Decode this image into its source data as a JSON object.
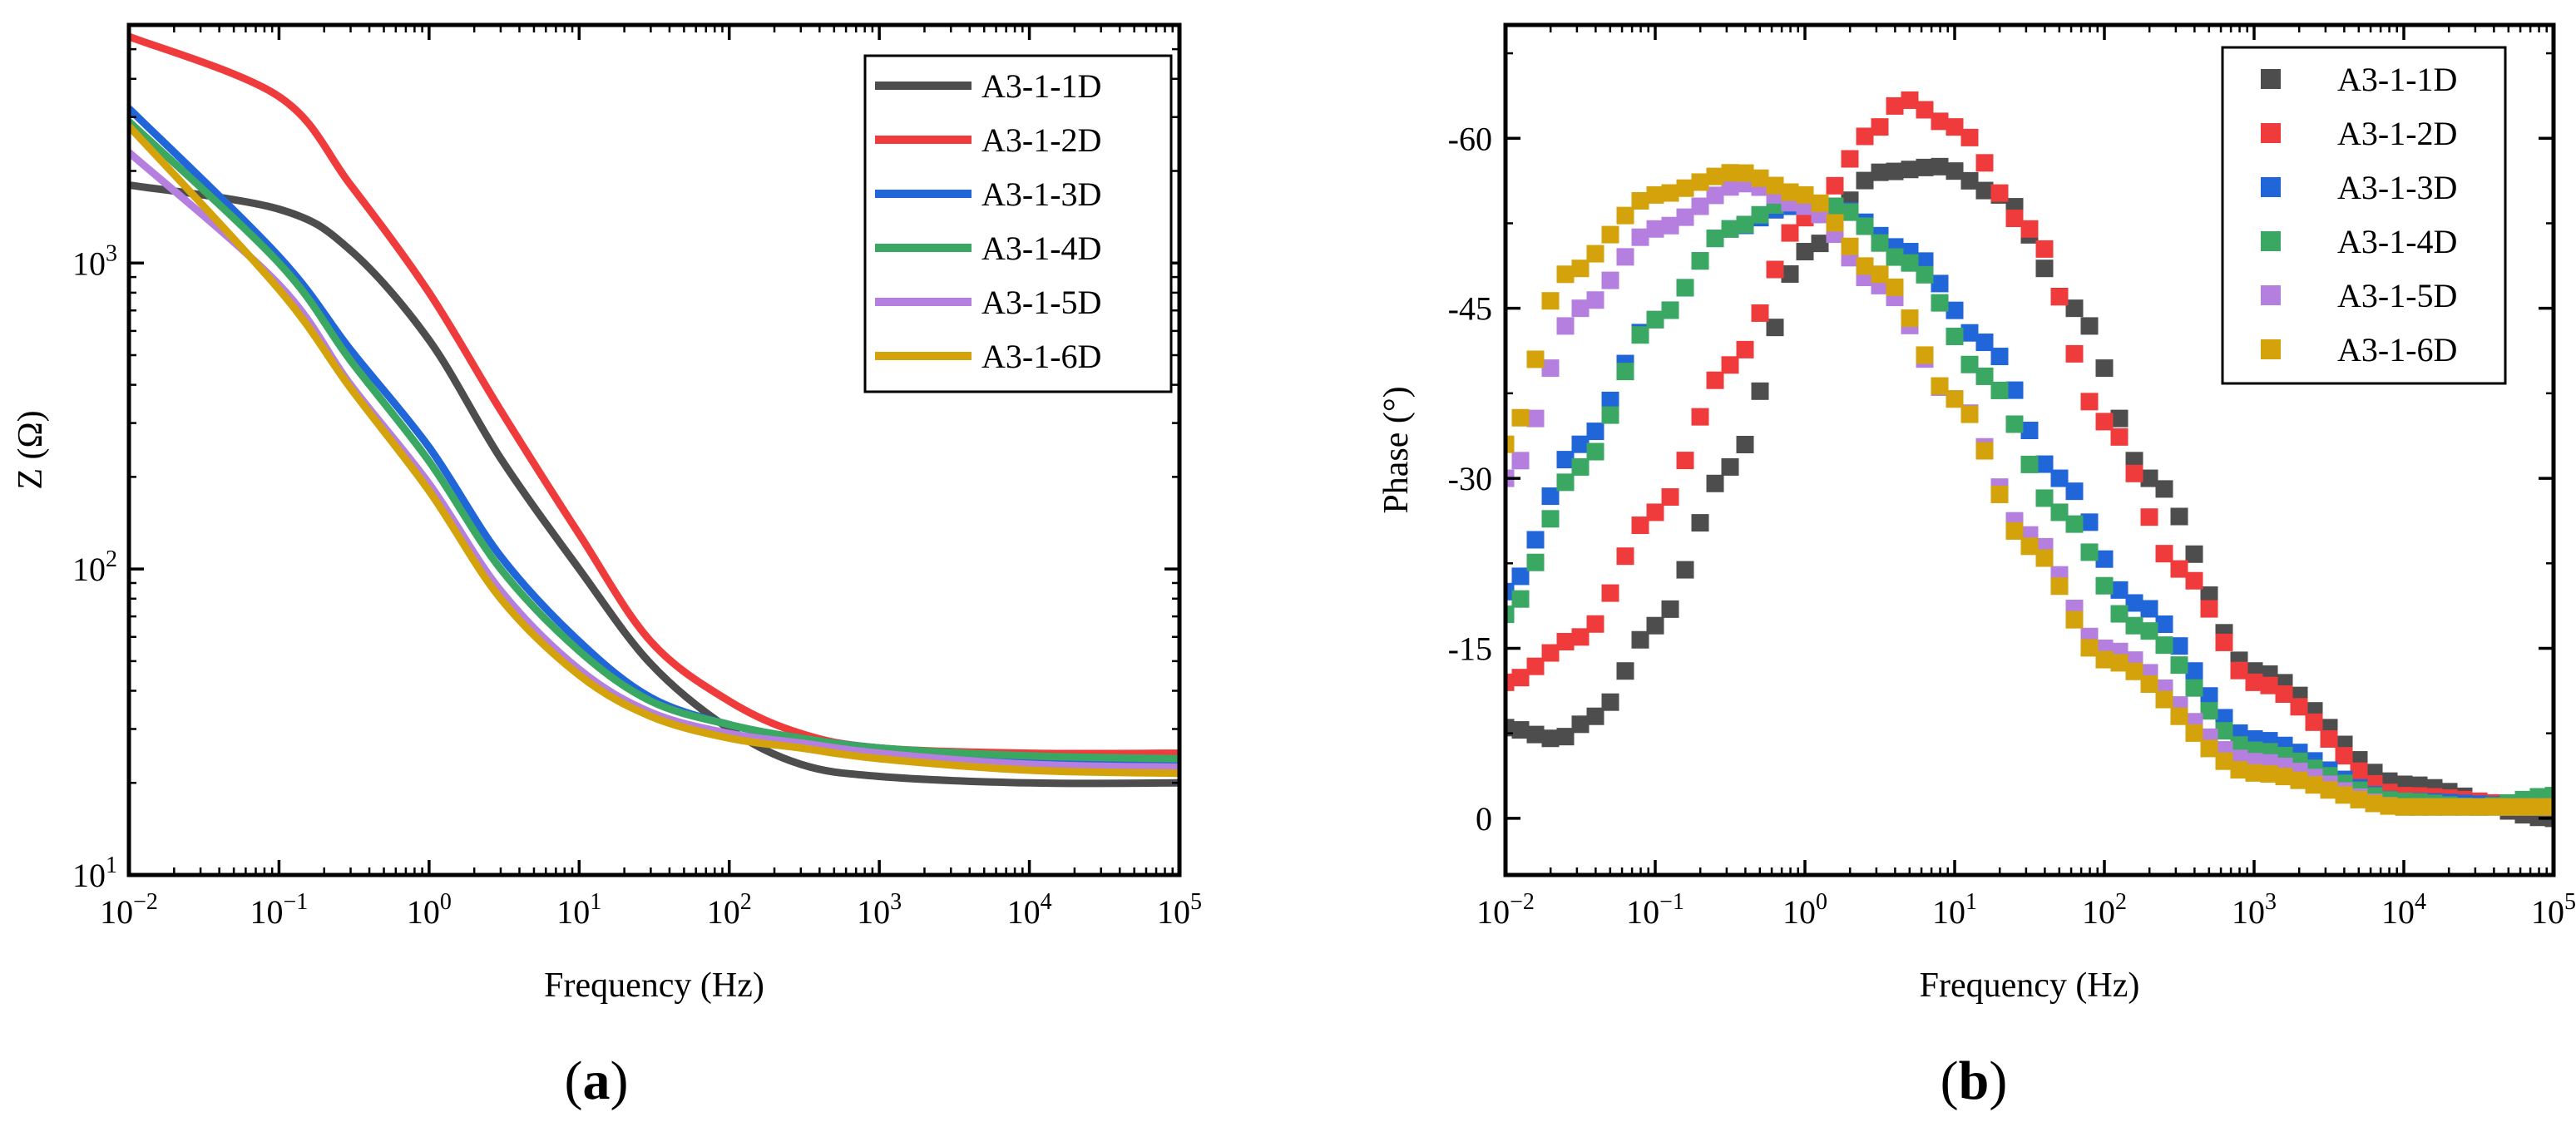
{
  "chart_data": [
    {
      "panel": "(a)",
      "panel_label": {
        "open": "(",
        "letter": "a",
        "close": ")"
      },
      "type": "line",
      "xscale": "log",
      "yscale": "log",
      "xlabel": "Frequency (Hz)",
      "ylabel": "Z (Ω)",
      "xlim": [
        0.01,
        100000
      ],
      "ylim": [
        10,
        6000
      ],
      "x_ticks": [
        {
          "mant": "10",
          "exp": "−2"
        },
        {
          "mant": "10",
          "exp": "−1"
        },
        {
          "mant": "10",
          "exp": "0"
        },
        {
          "mant": "10",
          "exp": "1"
        },
        {
          "mant": "10",
          "exp": "2"
        },
        {
          "mant": "10",
          "exp": "3"
        },
        {
          "mant": "10",
          "exp": "4"
        },
        {
          "mant": "10",
          "exp": "5"
        }
      ],
      "y_ticks": [
        {
          "mant": "10",
          "exp": "1"
        },
        {
          "mant": "10",
          "exp": "2"
        },
        {
          "mant": "10",
          "exp": "3"
        }
      ],
      "legend_position": "top-right",
      "x": [
        0.01,
        0.1,
        0.3,
        1,
        3,
        10,
        30,
        100,
        300,
        1000,
        10000,
        100000
      ],
      "series": [
        {
          "name": "A3-1-1D",
          "color": "#4d4d4d",
          "values": [
            1800,
            1500,
            1100,
            560,
            230,
            100,
            49,
            30,
            23,
            21,
            20,
            20
          ]
        },
        {
          "name": "A3-1-2D",
          "color": "#ef3b3b",
          "values": [
            5500,
            3500,
            1800,
            800,
            330,
            130,
            58,
            37,
            29,
            26,
            25,
            25
          ]
        },
        {
          "name": "A3-1-3D",
          "color": "#2166d9",
          "values": [
            3200,
            1050,
            520,
            250,
            110,
            58,
            38,
            31,
            28,
            26,
            24,
            23.5
          ]
        },
        {
          "name": "A3-1-4D",
          "color": "#3aa763",
          "values": [
            2900,
            1000,
            480,
            225,
            100,
            54,
            37,
            31,
            28,
            26,
            24.5,
            24
          ]
        },
        {
          "name": "A3-1-5D",
          "color": "#b57fe0",
          "values": [
            2300,
            850,
            400,
            190,
            85,
            47,
            34,
            29,
            27,
            25,
            23,
            22.5
          ]
        },
        {
          "name": "A3-1-6D",
          "color": "#d4a20a",
          "values": [
            2800,
            820,
            390,
            180,
            80,
            45,
            33,
            28,
            26,
            24,
            22,
            21.5
          ]
        }
      ]
    },
    {
      "panel": "(b)",
      "panel_label": {
        "open": "(",
        "letter": "b",
        "close": ")"
      },
      "type": "scatter",
      "xscale": "log",
      "yscale": "linear",
      "xlabel": "Frequency (Hz)",
      "ylabel": "Phase (°)",
      "xlim": [
        0.01,
        100000
      ],
      "ylim": [
        5,
        -70
      ],
      "y_ticks": [
        "-60",
        "-45",
        "-30",
        "-15",
        "0"
      ],
      "y_tick_values": [
        -60,
        -45,
        -30,
        -15,
        0
      ],
      "x_ticks": [
        {
          "mant": "10",
          "exp": "−2"
        },
        {
          "mant": "10",
          "exp": "−1"
        },
        {
          "mant": "10",
          "exp": "0"
        },
        {
          "mant": "10",
          "exp": "1"
        },
        {
          "mant": "10",
          "exp": "2"
        },
        {
          "mant": "10",
          "exp": "3"
        },
        {
          "mant": "10",
          "exp": "4"
        },
        {
          "mant": "10",
          "exp": "5"
        }
      ],
      "legend_position": "top-right",
      "series": [
        {
          "name": "A3-1-1D",
          "color": "#4d4d4d",
          "anchors": [
            [
              -2,
              -8
            ],
            [
              -1.65,
              -7
            ],
            [
              -1.4,
              -9
            ],
            [
              -1,
              -17
            ],
            [
              -0.5,
              -31
            ],
            [
              0,
              -50
            ],
            [
              0.5,
              -57
            ],
            [
              0.9,
              -57.5
            ],
            [
              1.3,
              -55
            ],
            [
              1.8,
              -45
            ],
            [
              2.3,
              -30
            ],
            [
              3,
              -13
            ],
            [
              4,
              -3
            ],
            [
              5,
              0
            ]
          ]
        },
        {
          "name": "A3-1-2D",
          "color": "#ef3b3b",
          "anchors": [
            [
              -2,
              -12
            ],
            [
              -1.5,
              -16
            ],
            [
              -1,
              -27
            ],
            [
              -0.5,
              -40
            ],
            [
              0,
              -53
            ],
            [
              0.5,
              -61
            ],
            [
              0.65,
              -63.5
            ],
            [
              1,
              -61
            ],
            [
              1.5,
              -52
            ],
            [
              2,
              -35
            ],
            [
              2.5,
              -22
            ],
            [
              3,
              -12
            ],
            [
              4,
              -2
            ],
            [
              5,
              -1
            ]
          ]
        },
        {
          "name": "A3-1-3D",
          "color": "#2166d9",
          "anchors": [
            [
              -2,
              -20
            ],
            [
              -1.5,
              -33
            ],
            [
              -1,
              -44
            ],
            [
              -0.5,
              -52
            ],
            [
              -0.1,
              -54
            ],
            [
              0.2,
              -54
            ],
            [
              0.7,
              -50
            ],
            [
              1.2,
              -42
            ],
            [
              1.7,
              -30
            ],
            [
              2.2,
              -19
            ],
            [
              3,
              -7
            ],
            [
              4,
              -1.5
            ],
            [
              5,
              -1
            ]
          ]
        },
        {
          "name": "A3-1-4D",
          "color": "#3aa763",
          "anchors": [
            [
              -2,
              -18
            ],
            [
              -1.5,
              -31
            ],
            [
              -1,
              -44
            ],
            [
              -0.5,
              -52
            ],
            [
              -0.1,
              -54.5
            ],
            [
              0.2,
              -54
            ],
            [
              0.7,
              -49
            ],
            [
              1.2,
              -39
            ],
            [
              1.7,
              -27
            ],
            [
              2.2,
              -17
            ],
            [
              3,
              -6
            ],
            [
              4,
              -1.5
            ],
            [
              4.5,
              -1
            ],
            [
              5,
              -2
            ]
          ]
        },
        {
          "name": "A3-1-5D",
          "color": "#b57fe0",
          "anchors": [
            [
              -2,
              -30
            ],
            [
              -1.5,
              -45
            ],
            [
              -1,
              -52
            ],
            [
              -0.4,
              -56
            ],
            [
              0,
              -54
            ],
            [
              0.5,
              -47
            ],
            [
              1,
              -37
            ],
            [
              1.5,
              -25
            ],
            [
              2,
              -15
            ],
            [
              3,
              -5
            ],
            [
              4,
              -1
            ],
            [
              5,
              -1
            ]
          ]
        },
        {
          "name": "A3-1-6D",
          "color": "#d4a20a",
          "anchors": [
            [
              -2,
              -33
            ],
            [
              -1.6,
              -48
            ],
            [
              -1,
              -55
            ],
            [
              -0.45,
              -57
            ],
            [
              0,
              -55
            ],
            [
              0.5,
              -48
            ],
            [
              1,
              -37
            ],
            [
              1.5,
              -24
            ],
            [
              2,
              -14
            ],
            [
              3,
              -4
            ],
            [
              4,
              -1
            ],
            [
              5,
              -1
            ]
          ]
        }
      ]
    }
  ]
}
